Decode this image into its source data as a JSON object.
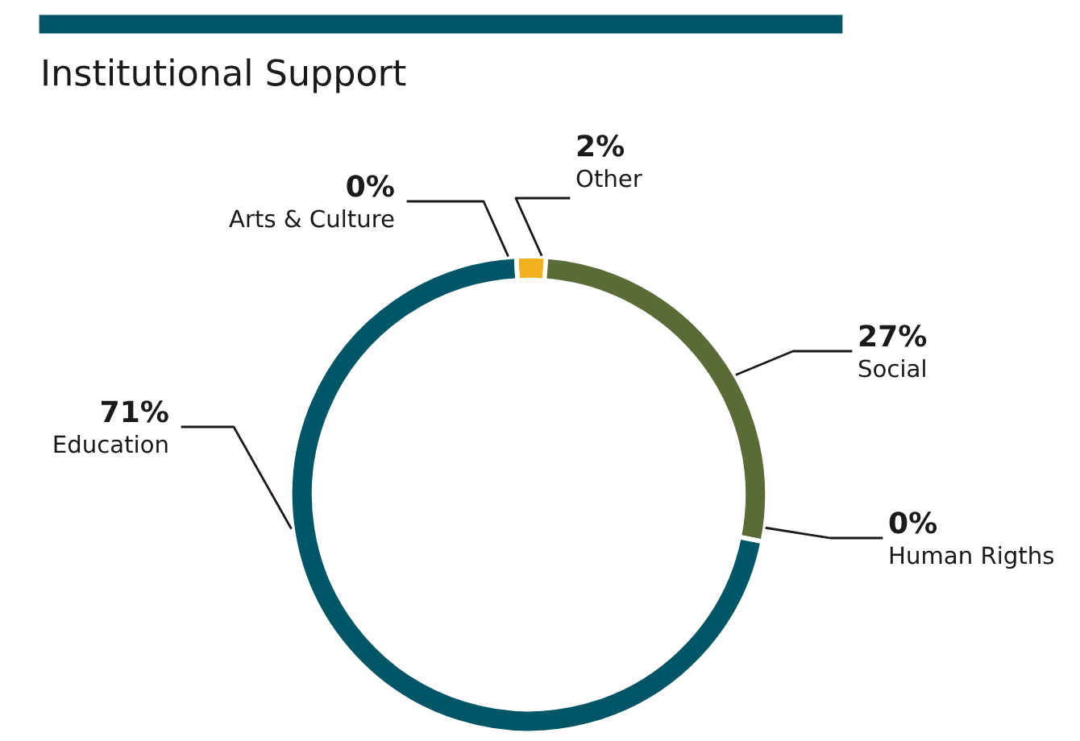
{
  "chart_data": {
    "type": "donut",
    "title": "Institutional Support",
    "categories": [
      "Other",
      "Social",
      "Human Rigths",
      "Education",
      "Arts & Culture"
    ],
    "values": [
      2,
      27,
      0,
      71,
      0
    ],
    "value_labels": [
      "2%",
      "27%",
      "0%",
      "71%",
      "0%"
    ],
    "colors": [
      "#f2b01e",
      "#5a6b38",
      "#005566",
      "#005566",
      "#005566"
    ]
  }
}
